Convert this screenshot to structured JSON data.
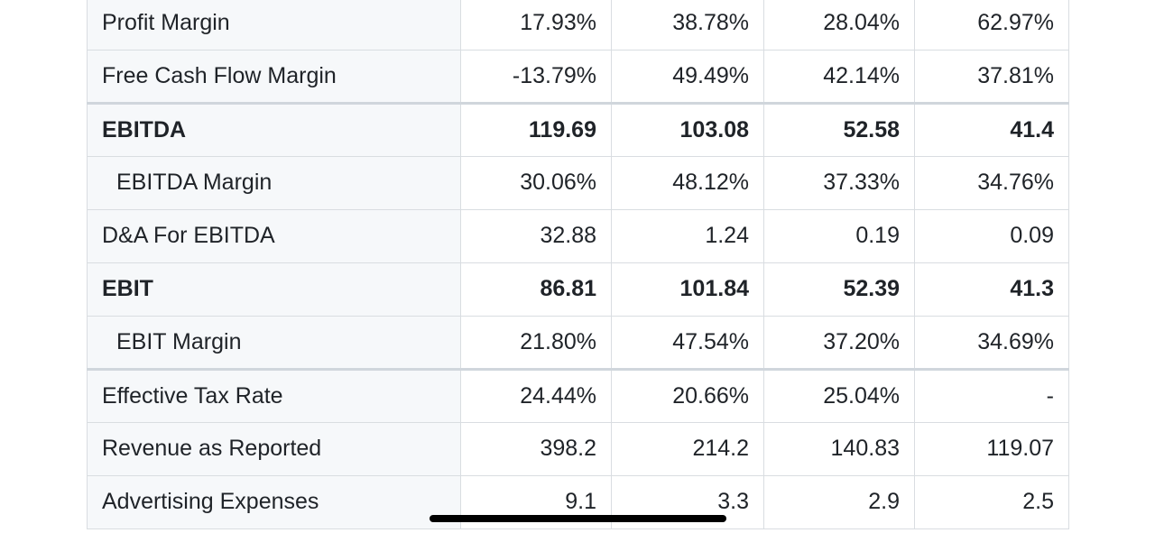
{
  "table": {
    "rows": [
      {
        "label": "Profit Margin",
        "values": [
          "17.93%",
          "38.78%",
          "28.04%",
          "62.97%"
        ]
      },
      {
        "label": "Free Cash Flow Margin",
        "values": [
          "-13.79%",
          "49.49%",
          "42.14%",
          "37.81%"
        ]
      },
      {
        "label": "EBITDA",
        "values": [
          "119.69",
          "103.08",
          "52.58",
          "41.4"
        ]
      },
      {
        "label": "EBITDA Margin",
        "values": [
          "30.06%",
          "48.12%",
          "37.33%",
          "34.76%"
        ]
      },
      {
        "label": "D&A For EBITDA",
        "values": [
          "32.88",
          "1.24",
          "0.19",
          "0.09"
        ]
      },
      {
        "label": "EBIT",
        "values": [
          "86.81",
          "101.84",
          "52.39",
          "41.3"
        ]
      },
      {
        "label": "EBIT Margin",
        "values": [
          "21.80%",
          "47.54%",
          "37.20%",
          "34.69%"
        ]
      },
      {
        "label": "Effective Tax Rate",
        "values": [
          "24.44%",
          "20.66%",
          "25.04%",
          "-"
        ]
      },
      {
        "label": "Revenue as Reported",
        "values": [
          "398.2",
          "214.2",
          "140.83",
          "119.07"
        ]
      },
      {
        "label": "Advertising Expenses",
        "values": [
          "9.1",
          "3.3",
          "2.9",
          "2.5"
        ]
      }
    ]
  }
}
